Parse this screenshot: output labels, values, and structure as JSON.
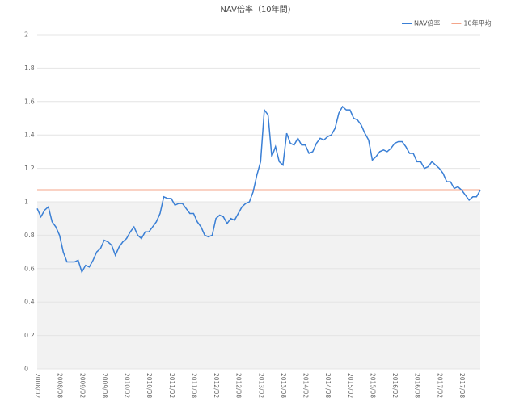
{
  "chart_data": {
    "type": "line",
    "title": "NAV倍率（10年間)",
    "categories": [
      "2008/02",
      null,
      null,
      null,
      null,
      null,
      "2008/08",
      null,
      null,
      null,
      null,
      null,
      "2009/02",
      null,
      null,
      null,
      null,
      null,
      "2009/08",
      null,
      null,
      null,
      null,
      null,
      "2010/02",
      null,
      null,
      null,
      null,
      null,
      "2010/08",
      null,
      null,
      null,
      null,
      null,
      "2011/02",
      null,
      null,
      null,
      null,
      null,
      "2011/08",
      null,
      null,
      null,
      null,
      null,
      "2012/02",
      null,
      null,
      null,
      null,
      null,
      "2012/08",
      null,
      null,
      null,
      null,
      null,
      "2013/02",
      null,
      null,
      null,
      null,
      null,
      "2013/08",
      null,
      null,
      null,
      null,
      null,
      "2014/02",
      null,
      null,
      null,
      null,
      null,
      "2014/08",
      null,
      null,
      null,
      null,
      null,
      "2015/02",
      null,
      null,
      null,
      null,
      null,
      "2015/08",
      null,
      null,
      null,
      null,
      null,
      "2016/02",
      null,
      null,
      null,
      null,
      null,
      "2016/08",
      null,
      null,
      null,
      null,
      null,
      "2017/02",
      null,
      null,
      null,
      null,
      null,
      "2017/08",
      null,
      null,
      null,
      null,
      null
    ],
    "series": [
      {
        "name": "NAV倍率",
        "color": "#3a7fd5",
        "values": [
          0.96,
          0.91,
          0.95,
          0.97,
          0.88,
          0.85,
          0.8,
          0.7,
          0.64,
          0.64,
          0.64,
          0.65,
          0.58,
          0.62,
          0.61,
          0.65,
          0.7,
          0.72,
          0.77,
          0.76,
          0.74,
          0.68,
          0.73,
          0.76,
          0.78,
          0.82,
          0.85,
          0.8,
          0.78,
          0.82,
          0.82,
          0.85,
          0.88,
          0.93,
          1.03,
          1.02,
          1.02,
          0.98,
          0.99,
          0.99,
          0.96,
          0.93,
          0.93,
          0.88,
          0.85,
          0.8,
          0.79,
          0.8,
          0.9,
          0.92,
          0.91,
          0.87,
          0.9,
          0.89,
          0.93,
          0.97,
          0.99,
          1.0,
          1.06,
          1.16,
          1.24,
          1.55,
          1.52,
          1.27,
          1.33,
          1.24,
          1.22,
          1.41,
          1.35,
          1.34,
          1.38,
          1.34,
          1.34,
          1.29,
          1.3,
          1.35,
          1.38,
          1.37,
          1.39,
          1.4,
          1.44,
          1.53,
          1.57,
          1.55,
          1.55,
          1.5,
          1.49,
          1.46,
          1.41,
          1.37,
          1.25,
          1.27,
          1.3,
          1.31,
          1.3,
          1.32,
          1.35,
          1.36,
          1.36,
          1.33,
          1.29,
          1.29,
          1.24,
          1.24,
          1.2,
          1.21,
          1.24,
          1.22,
          1.2,
          1.17,
          1.12,
          1.12,
          1.08,
          1.09,
          1.07,
          1.04,
          1.01,
          1.03,
          1.03,
          1.07
        ]
      }
    ],
    "reference_lines": [
      {
        "name": "10年平均",
        "color": "#f4a58a",
        "value": 1.07
      }
    ],
    "shaded_range": [
      0,
      1
    ],
    "ylim": [
      0,
      2
    ],
    "yticks": [
      0,
      0.2,
      0.4,
      0.6,
      0.8,
      1,
      1.2,
      1.4,
      1.6,
      1.8,
      2
    ],
    "grid": true,
    "legend": "top-right"
  }
}
